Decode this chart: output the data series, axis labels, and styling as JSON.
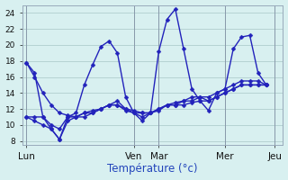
{
  "background_color": "#d8f0f0",
  "grid_color": "#b0cece",
  "line_color": "#2222bb",
  "xlabel": "Température (°c)",
  "day_labels": [
    "Lun",
    "Ven",
    "Mar",
    "Mer",
    "Jeu"
  ],
  "day_tick_positions": [
    0,
    13,
    16,
    24,
    30
  ],
  "ylim": [
    7.5,
    25
  ],
  "xlim": [
    -0.5,
    31
  ],
  "yticks": [
    8,
    10,
    12,
    14,
    16,
    18,
    20,
    22,
    24
  ],
  "series": [
    [
      17.8,
      16.5,
      11.0,
      9.5,
      8.2,
      11.0,
      11.5,
      15.0,
      17.5,
      19.8,
      20.5,
      19.0,
      13.5,
      11.5,
      10.5,
      11.5,
      19.2,
      23.2,
      24.5,
      19.5,
      14.5,
      13.0,
      11.8,
      14.0,
      14.5,
      19.5,
      21.0,
      21.2,
      16.5,
      15.0
    ],
    [
      11.0,
      11.0,
      11.0,
      10.0,
      9.5,
      11.0,
      11.0,
      11.5,
      11.5,
      12.0,
      12.5,
      12.5,
      11.8,
      11.5,
      11.5,
      11.5,
      11.8,
      12.5,
      12.5,
      12.5,
      12.8,
      13.0,
      13.0,
      13.5,
      14.0,
      14.5,
      15.0,
      15.0,
      15.0,
      15.0
    ],
    [
      17.8,
      16.0,
      14.0,
      12.5,
      11.5,
      11.2,
      11.0,
      11.5,
      11.8,
      12.0,
      12.5,
      12.5,
      12.0,
      11.8,
      11.5,
      11.5,
      12.0,
      12.5,
      12.8,
      13.0,
      13.5,
      13.5,
      13.5,
      14.0,
      14.5,
      15.0,
      15.5,
      15.5,
      15.5,
      15.0
    ],
    [
      11.0,
      10.5,
      10.0,
      9.5,
      8.2,
      10.5,
      11.0,
      11.0,
      11.5,
      12.0,
      12.5,
      13.0,
      12.0,
      11.5,
      11.0,
      11.5,
      12.0,
      12.5,
      12.5,
      13.0,
      13.0,
      13.5,
      13.0,
      13.5,
      14.0,
      14.5,
      15.0,
      15.0,
      15.0,
      15.0
    ]
  ],
  "marker": "D",
  "markersize": 2.5,
  "linewidth": 1.0
}
